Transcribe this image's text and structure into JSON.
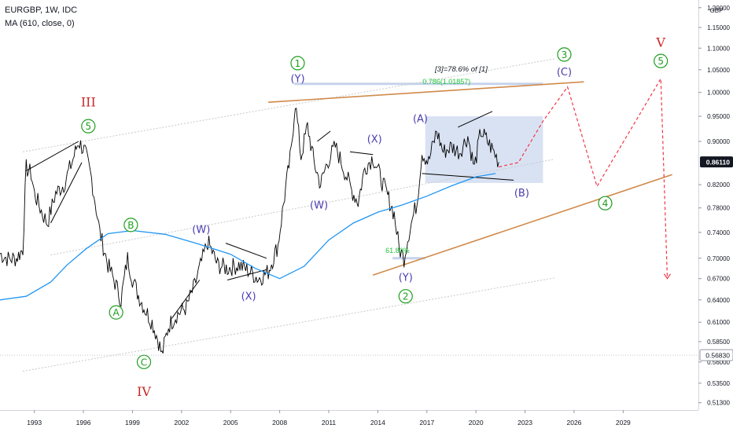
{
  "header": {
    "symbol_line": "EURGBP, 1W, IDC",
    "indicator_line": "MA (610, close, 0)"
  },
  "colors": {
    "price": "#000000",
    "ma": "#2196f3",
    "channel": "#c8c8c8",
    "trend": "#d08a4a",
    "projection": "#f23645",
    "wave_green": "#1e9e1e",
    "wave_blue": "#4a3cb0",
    "wave_red": "#c62828",
    "fib_zone": "#c5d3ec",
    "fib_level": "#22c33a"
  },
  "chart_data": {
    "type": "line",
    "symbol": "EURGBP",
    "timeframe": "1W",
    "source": "IDC",
    "currency_label": "GBP",
    "x_ticks": [
      "1993",
      "1996",
      "1999",
      "2002",
      "2005",
      "2008",
      "2011",
      "2014",
      "2017",
      "2020",
      "2023",
      "2026",
      "2029"
    ],
    "y_ticks": [
      1.2,
      1.15,
      1.1,
      1.05,
      1.0,
      0.95,
      0.9,
      0.82,
      0.78,
      0.74,
      0.7,
      0.67,
      0.64,
      0.61,
      0.585,
      0.56,
      0.535,
      0.513
    ],
    "y_tick_labels": [
      "1.20000",
      "1.15000",
      "1.10000",
      "1.05000",
      "1.00000",
      "0.95000",
      "0.90000",
      "0.82000",
      "0.78000",
      "0.74000",
      "0.70000",
      "0.67000",
      "0.64000",
      "0.61000",
      "0.58500",
      "0.56000",
      "0.53500",
      "0.51300"
    ],
    "ylim": [
      0.505,
      1.22
    ],
    "xlim": [
      1990.9,
      2033.6
    ],
    "log_scale": true,
    "grid": false,
    "price_labels": [
      {
        "value": 0.8611,
        "text": "0.86110",
        "style": "last"
      },
      {
        "value": 0.5683,
        "text": "0.56830",
        "style": "marker"
      }
    ],
    "series": [
      {
        "kind": "price",
        "points": [
          [
            1990.9,
            0.707
          ],
          [
            1991.4,
            0.699
          ],
          [
            1991.9,
            0.7
          ],
          [
            1992.3,
            0.714
          ],
          [
            1992.5,
            0.85
          ],
          [
            1992.8,
            0.84
          ],
          [
            1993.0,
            0.805
          ],
          [
            1993.5,
            0.77
          ],
          [
            1993.8,
            0.755
          ],
          [
            1994.3,
            0.805
          ],
          [
            1994.8,
            0.82
          ],
          [
            1995.3,
            0.86
          ],
          [
            1995.7,
            0.9
          ],
          [
            1996.1,
            0.88
          ],
          [
            1996.5,
            0.83
          ],
          [
            1997.0,
            0.74
          ],
          [
            1997.5,
            0.69
          ],
          [
            1998.0,
            0.66
          ],
          [
            1998.3,
            0.64
          ],
          [
            1998.7,
            0.7
          ],
          [
            1999.0,
            0.67
          ],
          [
            1999.3,
            0.65
          ],
          [
            1999.7,
            0.63
          ],
          [
            2000.2,
            0.61
          ],
          [
            2000.6,
            0.585
          ],
          [
            2000.8,
            0.568
          ],
          [
            2001.2,
            0.605
          ],
          [
            2001.7,
            0.62
          ],
          [
            2002.3,
            0.63
          ],
          [
            2002.8,
            0.66
          ],
          [
            2003.3,
            0.7
          ],
          [
            2003.6,
            0.725
          ],
          [
            2004.2,
            0.69
          ],
          [
            2004.8,
            0.685
          ],
          [
            2005.5,
            0.69
          ],
          [
            2006.2,
            0.68
          ],
          [
            2006.7,
            0.67
          ],
          [
            2007.3,
            0.68
          ],
          [
            2007.9,
            0.72
          ],
          [
            2008.3,
            0.8
          ],
          [
            2008.7,
            0.88
          ],
          [
            2008.95,
            0.98
          ],
          [
            2009.3,
            0.87
          ],
          [
            2009.7,
            0.93
          ],
          [
            2010.1,
            0.86
          ],
          [
            2010.5,
            0.82
          ],
          [
            2010.9,
            0.86
          ],
          [
            2011.4,
            0.89
          ],
          [
            2011.9,
            0.85
          ],
          [
            2012.4,
            0.81
          ],
          [
            2012.8,
            0.79
          ],
          [
            2013.2,
            0.85
          ],
          [
            2013.7,
            0.87
          ],
          [
            2014.2,
            0.83
          ],
          [
            2014.6,
            0.8
          ],
          [
            2015.0,
            0.77
          ],
          [
            2015.3,
            0.715
          ],
          [
            2015.6,
            0.7
          ],
          [
            2015.9,
            0.74
          ],
          [
            2016.4,
            0.79
          ],
          [
            2016.7,
            0.88
          ],
          [
            2017.1,
            0.86
          ],
          [
            2017.6,
            0.92
          ],
          [
            2018.0,
            0.88
          ],
          [
            2018.5,
            0.89
          ],
          [
            2019.0,
            0.88
          ],
          [
            2019.5,
            0.91
          ],
          [
            2019.9,
            0.85
          ],
          [
            2020.3,
            0.92
          ],
          [
            2020.7,
            0.9
          ],
          [
            2021.1,
            0.88
          ],
          [
            2021.4,
            0.861
          ]
        ]
      },
      {
        "kind": "ma",
        "points": [
          [
            1990.9,
            0.64
          ],
          [
            1992.5,
            0.645
          ],
          [
            1994.0,
            0.665
          ],
          [
            1995.0,
            0.69
          ],
          [
            1996.2,
            0.715
          ],
          [
            1997.5,
            0.738
          ],
          [
            1999.0,
            0.743
          ],
          [
            2001.0,
            0.737
          ],
          [
            2003.0,
            0.722
          ],
          [
            2005.0,
            0.706
          ],
          [
            2006.5,
            0.685
          ],
          [
            2008.0,
            0.67
          ],
          [
            2009.5,
            0.688
          ],
          [
            2011.0,
            0.728
          ],
          [
            2012.5,
            0.755
          ],
          [
            2014.0,
            0.773
          ],
          [
            2015.5,
            0.785
          ],
          [
            2017.0,
            0.8
          ],
          [
            2018.5,
            0.818
          ],
          [
            2020.0,
            0.834
          ],
          [
            2021.2,
            0.84
          ]
        ]
      }
    ],
    "annotations": [
      {
        "text": "[3]=78.6% of [1]",
        "x": 2019.1,
        "y": 1.046,
        "style": "note"
      },
      {
        "text": "0.786(1.01857)",
        "x": 2018.2,
        "y": 1.0186,
        "style": "fib_label"
      },
      {
        "text": "61.80%",
        "x": 2015.2,
        "y": 0.708,
        "style": "fib_label"
      }
    ],
    "wave_labels": [
      {
        "text": "III",
        "x": 1996.3,
        "y": 0.98,
        "style": "roman"
      },
      {
        "text": "5",
        "x": 1996.3,
        "y": 0.93,
        "style": "circle"
      },
      {
        "text": "IV",
        "x": 1999.7,
        "y": 0.526,
        "style": "roman"
      },
      {
        "text": "C",
        "x": 1999.7,
        "y": 0.56,
        "style": "circle"
      },
      {
        "text": "A",
        "x": 1998.0,
        "y": 0.623,
        "style": "circle"
      },
      {
        "text": "B",
        "x": 1998.9,
        "y": 0.752,
        "style": "circle"
      },
      {
        "text": "(W)",
        "x": 2003.2,
        "y": 0.745,
        "style": "paren"
      },
      {
        "text": "(X)",
        "x": 2006.1,
        "y": 0.645,
        "style": "paren"
      },
      {
        "text": "1",
        "x": 2009.1,
        "y": 1.065,
        "style": "circle"
      },
      {
        "text": "(Y)",
        "x": 2009.1,
        "y": 1.03,
        "style": "paren"
      },
      {
        "text": "(W)",
        "x": 2010.4,
        "y": 0.785,
        "style": "paren"
      },
      {
        "text": "(X)",
        "x": 2013.8,
        "y": 0.905,
        "style": "paren"
      },
      {
        "text": "(Y)",
        "x": 2015.7,
        "y": 0.672,
        "style": "paren"
      },
      {
        "text": "2",
        "x": 2015.7,
        "y": 0.645,
        "style": "circle"
      },
      {
        "text": "(A)",
        "x": 2016.6,
        "y": 0.945,
        "style": "paren"
      },
      {
        "text": "(B)",
        "x": 2022.8,
        "y": 0.806,
        "style": "paren"
      },
      {
        "text": "3",
        "x": 2025.4,
        "y": 1.085,
        "style": "circle"
      },
      {
        "text": "(C)",
        "x": 2025.4,
        "y": 1.045,
        "style": "paren"
      },
      {
        "text": "4",
        "x": 2027.9,
        "y": 0.788,
        "style": "circle"
      },
      {
        "text": "V",
        "x": 2031.3,
        "y": 1.115,
        "style": "roman"
      },
      {
        "text": "5",
        "x": 2031.3,
        "y": 1.07,
        "style": "circle"
      }
    ],
    "lines": [
      {
        "kind": "channel",
        "points": [
          [
            1992.3,
            0.88
          ],
          [
            2024.8,
            1.075
          ]
        ]
      },
      {
        "kind": "channel",
        "points": [
          [
            1994.0,
            0.705
          ],
          [
            2024.8,
            0.866
          ]
        ]
      },
      {
        "kind": "channel",
        "points": [
          [
            1992.3,
            0.549
          ],
          [
            2024.8,
            0.671
          ]
        ]
      },
      {
        "kind": "trend",
        "points": [
          [
            2007.3,
            0.979
          ],
          [
            2026.6,
            1.023
          ]
        ]
      },
      {
        "kind": "trend",
        "points": [
          [
            2013.7,
            0.675
          ],
          [
            2032.0,
            0.838
          ]
        ]
      },
      {
        "kind": "projection",
        "points": [
          [
            2021.4,
            0.852
          ],
          [
            2022.6,
            0.86
          ],
          [
            2024.1,
            0.94
          ],
          [
            2025.6,
            1.012
          ],
          [
            2027.4,
            0.817
          ],
          [
            2031.3,
            1.03
          ],
          [
            2031.7,
            0.67
          ]
        ]
      },
      {
        "kind": "minor",
        "points": [
          [
            1992.5,
            0.845
          ],
          [
            1995.7,
            0.9
          ]
        ]
      },
      {
        "kind": "minor",
        "points": [
          [
            1994.0,
            0.755
          ],
          [
            1995.9,
            0.86
          ]
        ]
      },
      {
        "kind": "minor",
        "points": [
          [
            2001.4,
            0.615
          ],
          [
            2003.1,
            0.668
          ]
        ]
      },
      {
        "kind": "minor",
        "points": [
          [
            2004.7,
            0.723
          ],
          [
            2007.2,
            0.7
          ]
        ]
      },
      {
        "kind": "minor",
        "points": [
          [
            2004.8,
            0.668
          ],
          [
            2007.2,
            0.683
          ]
        ]
      },
      {
        "kind": "minor",
        "points": [
          [
            2010.3,
            0.9
          ],
          [
            2011.1,
            0.92
          ]
        ]
      },
      {
        "kind": "minor",
        "points": [
          [
            2012.3,
            0.88
          ],
          [
            2013.7,
            0.875
          ]
        ]
      },
      {
        "kind": "minor",
        "points": [
          [
            2018.9,
            0.928
          ],
          [
            2021.0,
            0.96
          ]
        ]
      },
      {
        "kind": "minor",
        "points": [
          [
            2016.7,
            0.84
          ],
          [
            2022.3,
            0.828
          ]
        ]
      }
    ],
    "fib_box": {
      "x0": 2016.9,
      "x1": 2024.1,
      "y0": 0.823,
      "y1": 0.95
    },
    "fib_lines": [
      {
        "x0": 2008.9,
        "x1": 2024.1,
        "y": 1.0186
      },
      {
        "x0": 2014.9,
        "x1": 2016.9,
        "y": 0.7
      }
    ]
  }
}
